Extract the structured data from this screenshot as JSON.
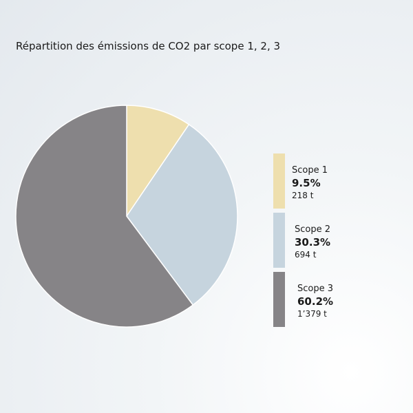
{
  "chart_data": {
    "type": "pie",
    "title": "Répartition des émissions de CO2 par scope 1, 2, 3",
    "slices": [
      {
        "name": "Scope 1",
        "percent": 9.5,
        "percent_label": "9.5%",
        "value": 218,
        "value_label": "218 t",
        "color": "#eedfae"
      },
      {
        "name": "Scope 2",
        "percent": 30.3,
        "percent_label": "30.3%",
        "value": 694,
        "value_label": "694 t",
        "color": "#c6d4de"
      },
      {
        "name": "Scope 3",
        "percent": 60.2,
        "percent_label": "60.2%",
        "value": 1379,
        "value_label": "1’379 t",
        "color": "#868487"
      }
    ],
    "legend_position": "right",
    "start_angle": "top",
    "direction": "clockwise"
  }
}
